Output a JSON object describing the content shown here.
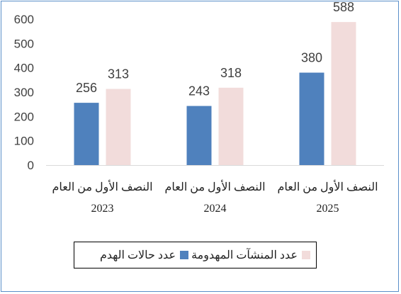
{
  "chart_data": {
    "type": "bar",
    "categories": [
      [
        "النصف الأول من العام",
        "2023"
      ],
      [
        "النصف الأول من العام",
        "2024"
      ],
      [
        "النصف الأول من العام",
        "2025"
      ]
    ],
    "series": [
      {
        "name": "عدد حالات الهدم",
        "values": [
          256,
          243,
          380
        ],
        "color": "#4f81bd"
      },
      {
        "name": "عدد المنشآت المهدومة",
        "values": [
          313,
          318,
          588
        ],
        "color": "#f2dcdb"
      }
    ],
    "ylim": [
      0,
      600
    ],
    "yticks": [
      0,
      100,
      200,
      300,
      400,
      500,
      600
    ],
    "grid": false,
    "legend_position": "bottom",
    "title": "",
    "xlabel": "",
    "ylabel": ""
  }
}
